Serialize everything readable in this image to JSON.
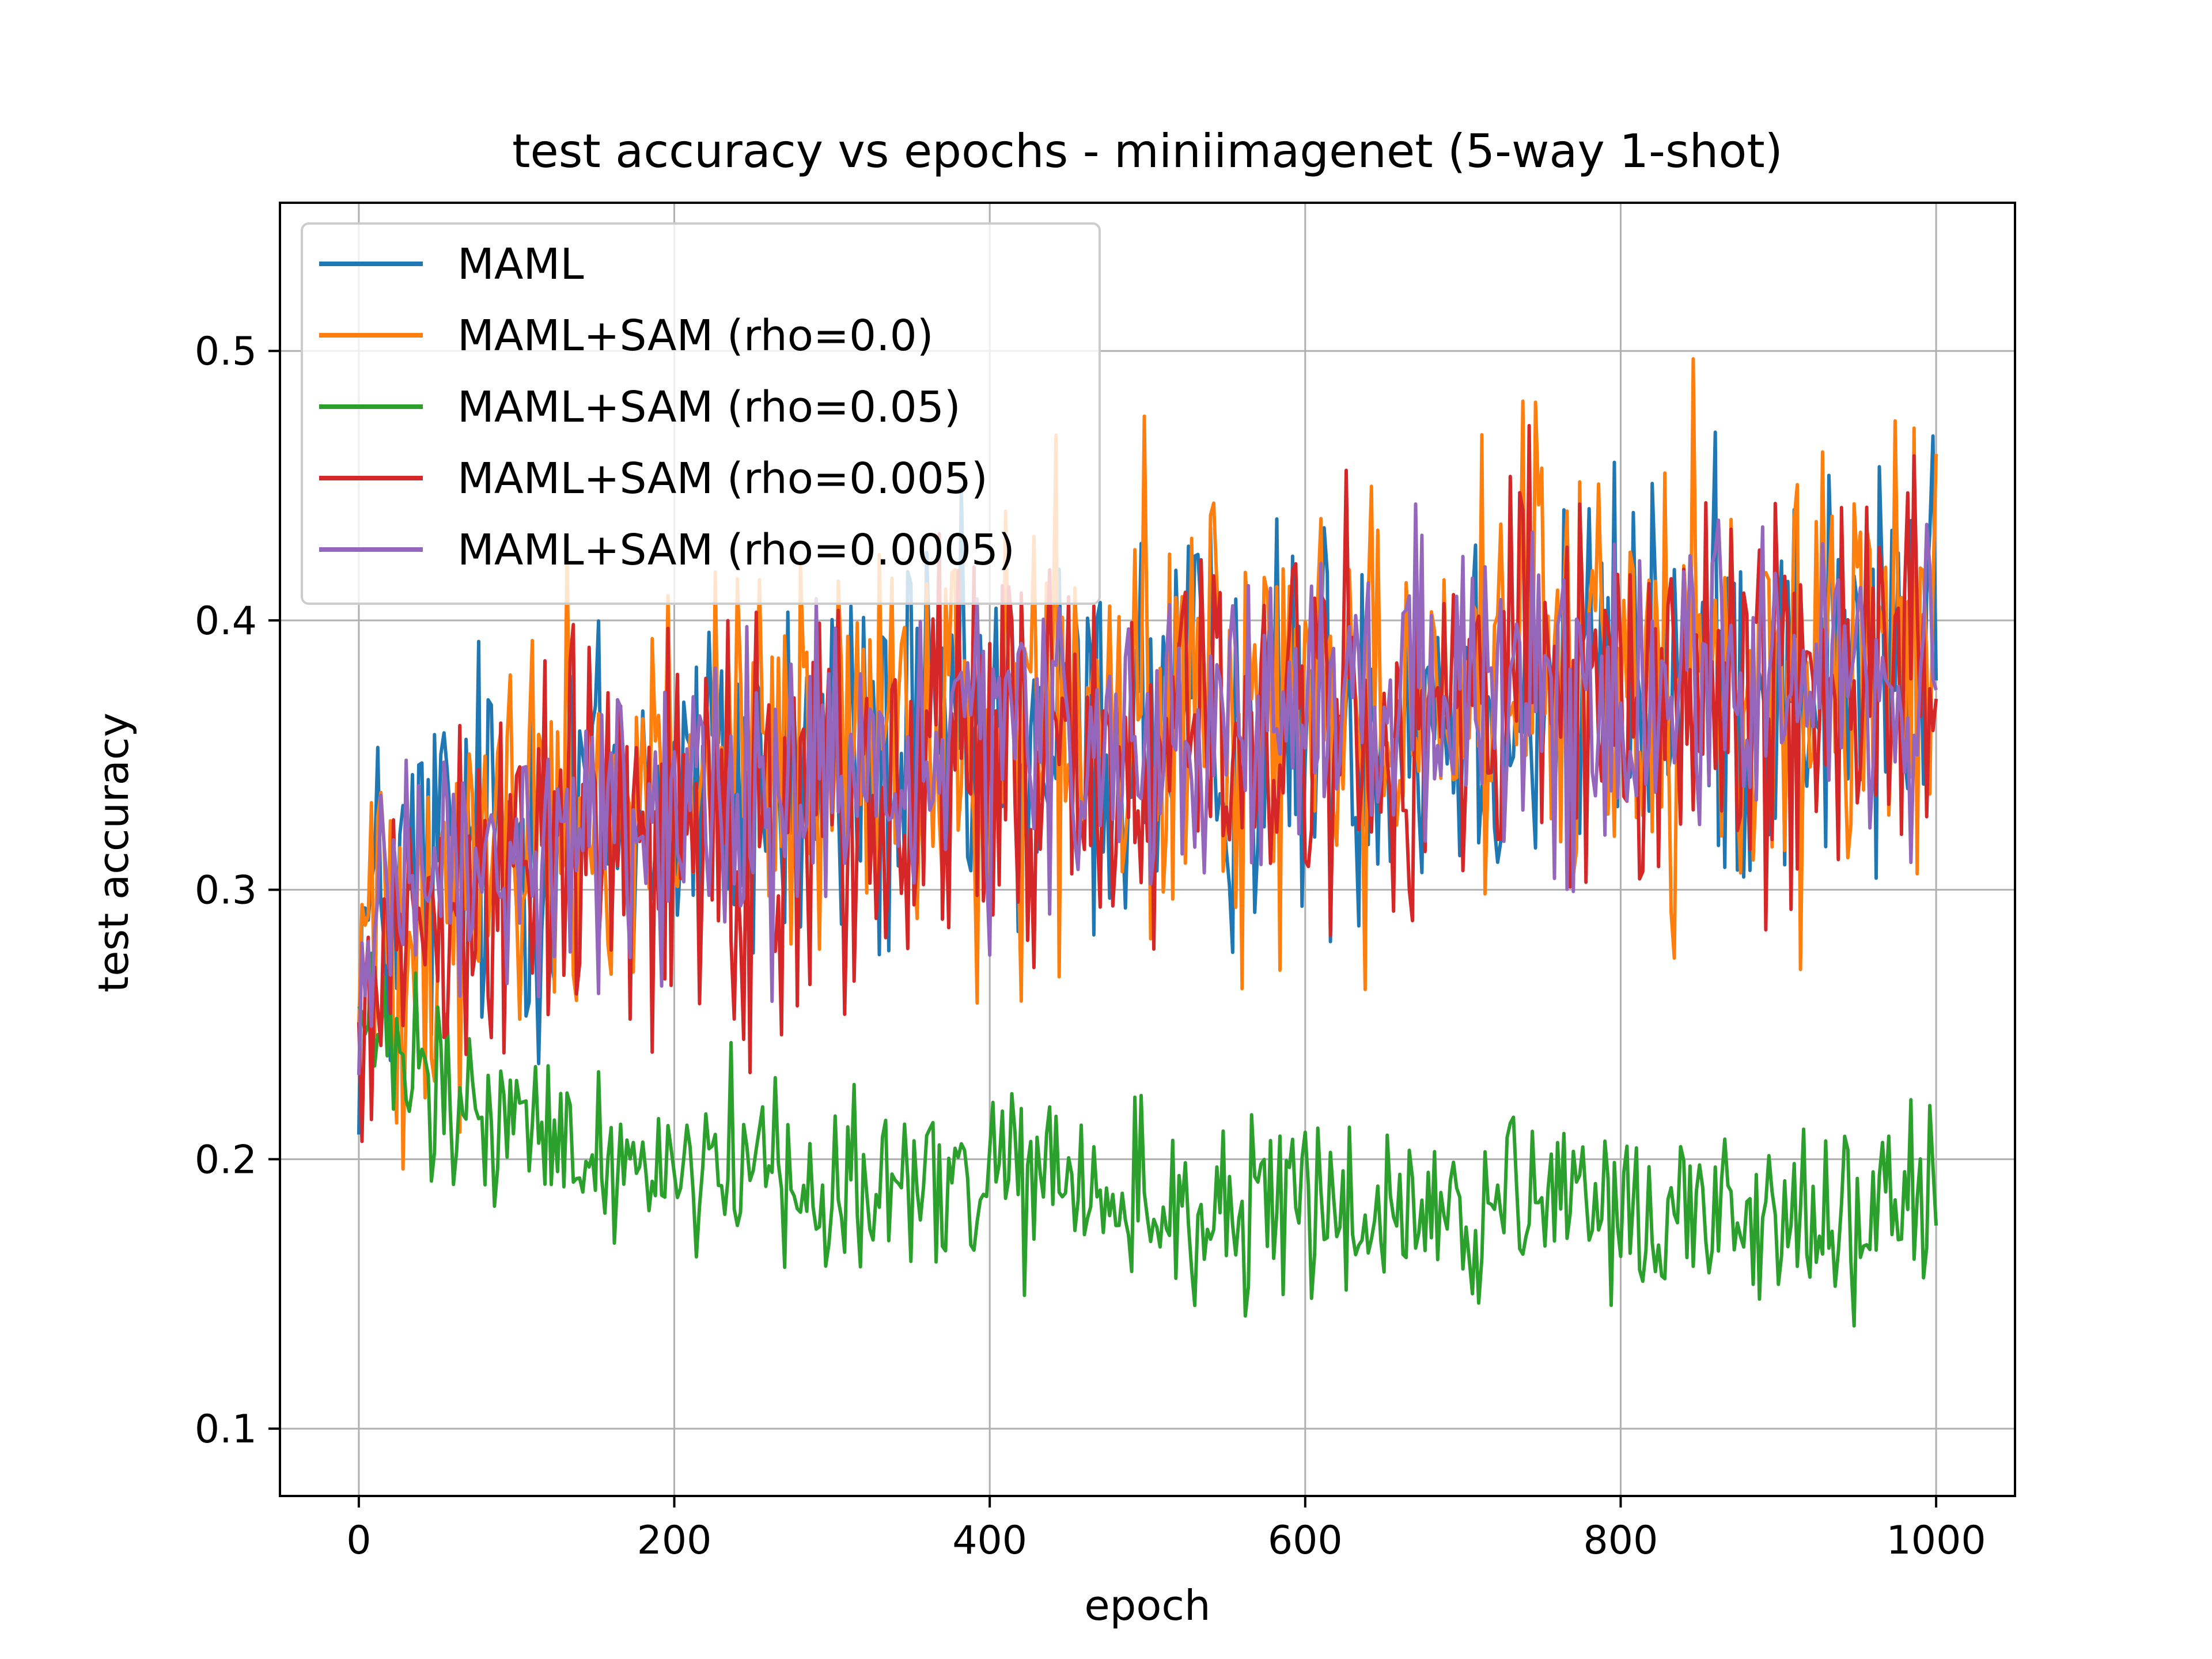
{
  "chart_data": {
    "type": "line",
    "title": "test accuracy vs epochs - miniimagenet (5-way 1-shot)",
    "xlabel": "epoch",
    "ylabel": "test accuracy",
    "xlim": [
      -50,
      1050
    ],
    "ylim": [
      0.075,
      0.555
    ],
    "xticks": [
      0,
      200,
      400,
      600,
      800,
      1000
    ],
    "yticks": [
      0.1,
      0.2,
      0.3,
      0.4,
      0.5
    ],
    "xtick_labels": [
      "0",
      "200",
      "400",
      "600",
      "800",
      "1000"
    ],
    "ytick_labels": [
      "0.1",
      "0.2",
      "0.3",
      "0.4",
      "0.5"
    ],
    "grid": true,
    "legend_position": "upper-left",
    "series": [
      {
        "name": "MAML",
        "color": "#1f77b4",
        "x": [
          0,
          50,
          100,
          150,
          200,
          250,
          300,
          350,
          400,
          450,
          500,
          550,
          600,
          650,
          700,
          750,
          800,
          850,
          900,
          950,
          1000
        ],
        "y": [
          0.28,
          0.31,
          0.32,
          0.33,
          0.33,
          0.34,
          0.34,
          0.35,
          0.35,
          0.35,
          0.36,
          0.36,
          0.36,
          0.37,
          0.37,
          0.37,
          0.38,
          0.38,
          0.38,
          0.38,
          0.39
        ],
        "spread": 0.055
      },
      {
        "name": "MAML+SAM (rho=0.0)",
        "color": "#ff7f0e",
        "x": [
          0,
          50,
          100,
          150,
          200,
          250,
          300,
          350,
          400,
          450,
          500,
          550,
          600,
          650,
          700,
          750,
          800,
          850,
          900,
          950,
          1000
        ],
        "y": [
          0.28,
          0.31,
          0.32,
          0.33,
          0.34,
          0.34,
          0.34,
          0.35,
          0.35,
          0.36,
          0.36,
          0.37,
          0.37,
          0.37,
          0.38,
          0.38,
          0.38,
          0.38,
          0.38,
          0.39,
          0.39
        ],
        "spread": 0.06
      },
      {
        "name": "MAML+SAM (rho=0.05)",
        "color": "#2ca02c",
        "x": [
          0,
          50,
          100,
          150,
          200,
          250,
          300,
          350,
          400,
          450,
          500,
          550,
          600,
          650,
          700,
          750,
          800,
          850,
          900,
          950,
          1000
        ],
        "y": [
          0.25,
          0.22,
          0.21,
          0.2,
          0.2,
          0.2,
          0.19,
          0.19,
          0.19,
          0.19,
          0.18,
          0.18,
          0.18,
          0.18,
          0.18,
          0.18,
          0.18,
          0.18,
          0.18,
          0.18,
          0.18
        ],
        "spread": 0.025
      },
      {
        "name": "MAML+SAM (rho=0.005)",
        "color": "#d62728",
        "x": [
          0,
          50,
          100,
          150,
          200,
          250,
          300,
          350,
          400,
          450,
          500,
          550,
          600,
          650,
          700,
          750,
          800,
          850,
          900,
          950,
          1000
        ],
        "y": [
          0.27,
          0.3,
          0.31,
          0.32,
          0.33,
          0.33,
          0.34,
          0.34,
          0.35,
          0.35,
          0.35,
          0.36,
          0.36,
          0.36,
          0.37,
          0.37,
          0.37,
          0.37,
          0.38,
          0.38,
          0.38
        ],
        "spread": 0.055
      },
      {
        "name": "MAML+SAM (rho=0.0005)",
        "color": "#9467bd",
        "x": [
          0,
          50,
          100,
          150,
          200,
          250,
          300,
          350,
          400,
          450,
          500,
          550,
          600,
          650,
          700,
          750,
          800,
          850,
          900,
          950,
          1000
        ],
        "y": [
          0.27,
          0.3,
          0.31,
          0.32,
          0.33,
          0.33,
          0.34,
          0.34,
          0.35,
          0.35,
          0.36,
          0.36,
          0.36,
          0.37,
          0.37,
          0.37,
          0.37,
          0.38,
          0.38,
          0.38,
          0.38
        ],
        "spread": 0.04
      }
    ]
  }
}
